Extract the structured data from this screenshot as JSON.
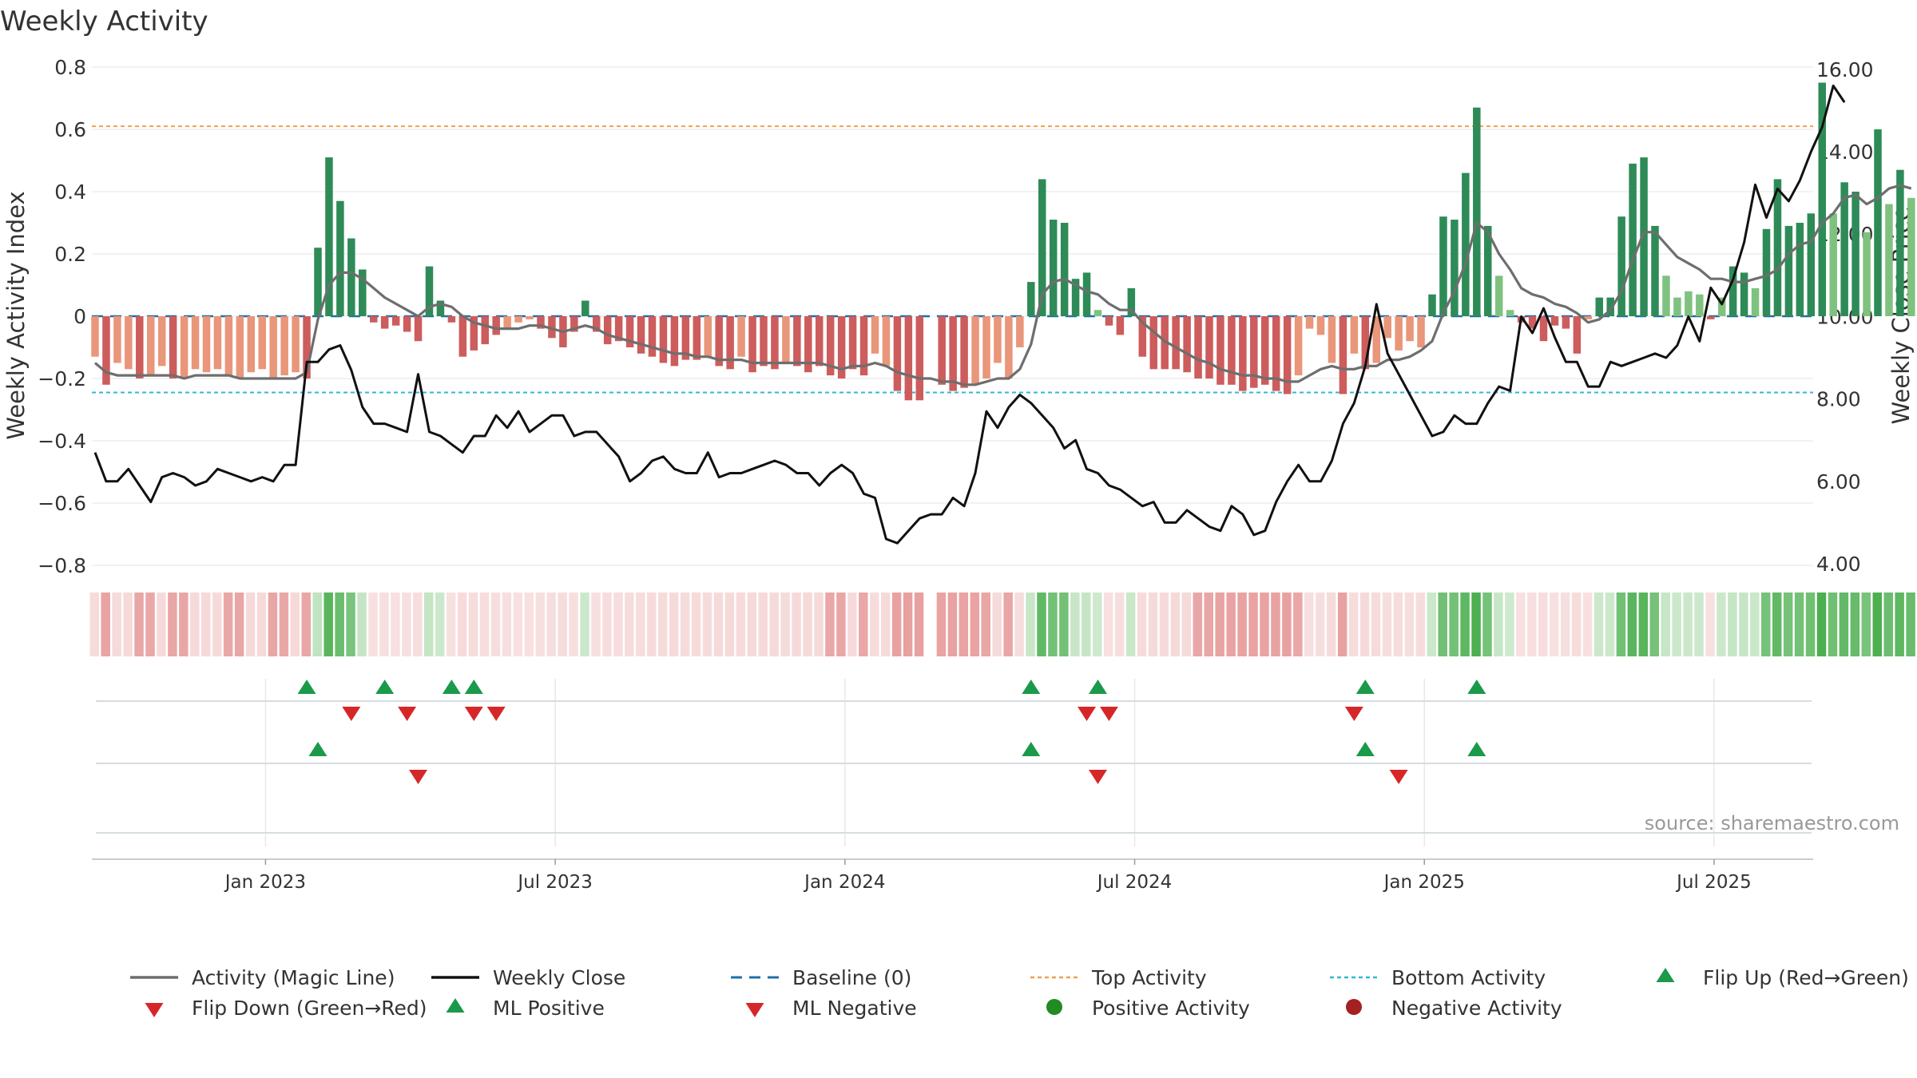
{
  "chart_data": {
    "type": "bar",
    "title": "Weekly Activity",
    "source": "source: sharemaestro.com",
    "ylabel": "Weekly Activity Index",
    "y2label": "Weekly Close Price",
    "ylim": [
      -0.8,
      0.8
    ],
    "y2lim": [
      4.0,
      16.0
    ],
    "yticks": [
      "0.8",
      "0.6",
      "0.4",
      "0.2",
      "0",
      "−0.2",
      "−0.4",
      "−0.6",
      "−0.8"
    ],
    "y2ticks": [
      "16.00",
      "14.00",
      "12.00",
      "10.00",
      "8.00",
      "6.00",
      "4.00"
    ],
    "xtick_labels": [
      "Jan 2023",
      "Jul 2023",
      "Jan 2024",
      "Jul 2024",
      "Jan 2025",
      "Jul 2025"
    ],
    "xtick_weeks": [
      15.3,
      41.3,
      67.3,
      93.3,
      119.3,
      145.3
    ],
    "top_activity": 0.61,
    "bottom_activity": -0.245,
    "baseline": 0,
    "activity": [
      -0.13,
      -0.22,
      -0.15,
      -0.17,
      -0.2,
      -0.19,
      -0.16,
      -0.2,
      -0.2,
      -0.17,
      -0.18,
      -0.17,
      -0.19,
      -0.2,
      -0.18,
      -0.17,
      -0.2,
      -0.19,
      -0.18,
      -0.2,
      0.22,
      0.51,
      0.37,
      0.25,
      0.15,
      -0.02,
      -0.04,
      -0.03,
      -0.05,
      -0.08,
      0.16,
      0.05,
      -0.02,
      -0.13,
      -0.11,
      -0.09,
      -0.06,
      -0.04,
      -0.02,
      -0.01,
      -0.04,
      -0.07,
      -0.1,
      -0.05,
      0.05,
      -0.05,
      -0.09,
      -0.08,
      -0.1,
      -0.12,
      -0.13,
      -0.15,
      -0.16,
      -0.14,
      -0.14,
      -0.13,
      -0.16,
      -0.17,
      -0.13,
      -0.18,
      -0.16,
      -0.17,
      -0.15,
      -0.16,
      -0.18,
      -0.16,
      -0.19,
      -0.2,
      -0.17,
      -0.19,
      -0.12,
      -0.16,
      -0.24,
      -0.27,
      -0.27,
      0.0,
      -0.22,
      -0.24,
      -0.23,
      -0.22,
      -0.2,
      -0.15,
      -0.2,
      -0.1,
      0.11,
      0.44,
      0.31,
      0.3,
      0.12,
      0.14,
      0.02,
      -0.03,
      -0.06,
      0.09,
      -0.13,
      -0.17,
      -0.17,
      -0.17,
      -0.18,
      -0.2,
      -0.2,
      -0.22,
      -0.22,
      -0.24,
      -0.23,
      -0.22,
      -0.24,
      -0.25,
      -0.19,
      -0.04,
      -0.06,
      -0.15,
      -0.25,
      -0.12,
      -0.17,
      -0.15,
      -0.07,
      -0.11,
      -0.08,
      -0.1,
      0.07,
      0.32,
      0.31,
      0.46,
      0.67,
      0.29,
      0.13,
      0.02,
      -0.02,
      -0.04,
      -0.08,
      -0.03,
      -0.04,
      -0.12,
      -0.01,
      0.06,
      0.06,
      0.32,
      0.49,
      0.51,
      0.29,
      0.13,
      0.06,
      0.08,
      0.07,
      -0.01,
      0.06,
      0.16,
      0.14,
      0.09,
      0.28,
      0.44,
      0.29,
      0.3,
      0.33,
      0.75,
      0.33,
      0.43,
      0.4,
      0.27,
      0.6,
      0.36,
      0.47,
      0.38
    ],
    "magic_line": [
      -0.15,
      -0.18,
      -0.19,
      -0.19,
      -0.19,
      -0.19,
      -0.19,
      -0.19,
      -0.2,
      -0.19,
      -0.19,
      -0.19,
      -0.19,
      -0.2,
      -0.2,
      -0.2,
      -0.2,
      -0.2,
      -0.2,
      -0.18,
      -0.01,
      0.1,
      0.14,
      0.14,
      0.12,
      0.09,
      0.06,
      0.04,
      0.02,
      0.0,
      0.03,
      0.04,
      0.03,
      0.0,
      -0.02,
      -0.03,
      -0.04,
      -0.04,
      -0.04,
      -0.03,
      -0.03,
      -0.04,
      -0.05,
      -0.04,
      -0.03,
      -0.04,
      -0.06,
      -0.07,
      -0.08,
      -0.09,
      -0.1,
      -0.11,
      -0.12,
      -0.12,
      -0.13,
      -0.13,
      -0.14,
      -0.14,
      -0.14,
      -0.15,
      -0.15,
      -0.15,
      -0.15,
      -0.15,
      -0.15,
      -0.15,
      -0.16,
      -0.17,
      -0.16,
      -0.16,
      -0.15,
      -0.16,
      -0.18,
      -0.19,
      -0.2,
      -0.2,
      -0.21,
      -0.21,
      -0.22,
      -0.22,
      -0.21,
      -0.2,
      -0.2,
      -0.17,
      -0.09,
      0.07,
      0.11,
      0.12,
      0.1,
      0.08,
      0.07,
      0.04,
      0.02,
      0.02,
      -0.02,
      -0.05,
      -0.08,
      -0.1,
      -0.12,
      -0.14,
      -0.15,
      -0.17,
      -0.18,
      -0.19,
      -0.19,
      -0.2,
      -0.2,
      -0.21,
      -0.21,
      -0.19,
      -0.17,
      -0.16,
      -0.17,
      -0.17,
      -0.16,
      -0.16,
      -0.14,
      -0.14,
      -0.13,
      -0.11,
      -0.08,
      0.01,
      0.08,
      0.17,
      0.3,
      0.27,
      0.2,
      0.15,
      0.09,
      0.07,
      0.06,
      0.04,
      0.03,
      0.01,
      -0.02,
      -0.01,
      0.02,
      0.08,
      0.18,
      0.27,
      0.27,
      0.23,
      0.19,
      0.17,
      0.15,
      0.12,
      0.12,
      0.11,
      0.11,
      0.12,
      0.13,
      0.15,
      0.2,
      0.23,
      0.24,
      0.3,
      0.33,
      0.38,
      0.39,
      0.36,
      0.38,
      0.41,
      0.42,
      0.41
    ],
    "weekly_close": [
      6.7,
      6.0,
      6.0,
      6.3,
      5.9,
      5.5,
      6.1,
      6.2,
      6.1,
      5.9,
      6.0,
      6.3,
      6.2,
      6.1,
      6.0,
      6.1,
      6.0,
      6.4,
      6.4,
      8.9,
      8.9,
      9.2,
      9.3,
      8.7,
      7.8,
      7.4,
      7.4,
      7.3,
      7.2,
      8.6,
      7.2,
      7.1,
      6.9,
      6.7,
      7.1,
      7.1,
      7.6,
      7.3,
      7.7,
      7.2,
      7.4,
      7.6,
      7.6,
      7.1,
      7.2,
      7.2,
      6.9,
      6.6,
      6.0,
      6.2,
      6.5,
      6.6,
      6.3,
      6.2,
      6.2,
      6.7,
      6.1,
      6.2,
      6.2,
      6.3,
      6.4,
      6.5,
      6.4,
      6.2,
      6.2,
      5.9,
      6.2,
      6.4,
      6.2,
      5.7,
      5.6,
      4.6,
      4.5,
      4.8,
      5.1,
      5.2,
      5.2,
      5.6,
      5.4,
      6.2,
      7.7,
      7.3,
      7.8,
      8.1,
      7.9,
      7.6,
      7.3,
      6.8,
      7.0,
      6.3,
      6.2,
      5.9,
      5.8,
      5.6,
      5.4,
      5.5,
      5.0,
      5.0,
      5.3,
      5.1,
      4.9,
      4.8,
      5.4,
      5.2,
      4.7,
      4.8,
      5.5,
      6.0,
      6.4,
      6.0,
      6.0,
      6.5,
      7.4,
      7.9,
      8.8,
      10.3,
      9.1,
      8.6,
      8.1,
      7.6,
      7.1,
      7.2,
      7.6,
      7.4,
      7.4,
      7.9,
      8.3,
      8.2,
      10.0,
      9.6,
      10.2,
      9.5,
      8.9,
      8.9,
      8.3,
      8.3,
      8.9,
      8.8,
      8.9,
      9.0,
      9.1,
      9.0,
      9.3,
      10.0,
      9.4,
      10.7,
      10.3,
      10.9,
      11.8,
      13.2,
      12.4,
      13.1,
      12.8,
      13.3,
      14.0,
      14.6,
      15.6,
      15.2
    ],
    "bar_colors": {
      "pos_strong": "#2e8b57",
      "pos_light": "#7fc27f",
      "neg_strong": "#cd5c5c",
      "neg_light": "#e9967a"
    },
    "heat_colors": {
      "pos_strong": "#4caf50",
      "pos_light": "#a8d8a8",
      "neg_strong": "#e08080",
      "neg_light": "#f2c8c8"
    },
    "line_colors": {
      "magic": "#6e6e6e",
      "close": "#111111",
      "baseline": "#1f6fa8",
      "top": "#f0a050",
      "bottom": "#30b8d8",
      "up": "#1a9a4a",
      "down": "#d62728",
      "pos": "#228b22",
      "neg": "#a52020"
    },
    "flip_up_row1": [
      19,
      26,
      32,
      34,
      84,
      90,
      114,
      124
    ],
    "flip_down_row1": [
      23,
      28,
      34,
      36,
      89,
      91,
      113
    ],
    "ml_up_row2": [
      20,
      84,
      114,
      124
    ],
    "ml_down_row2": [
      29,
      90,
      117
    ],
    "legend": [
      {
        "label": "Activity (Magic Line)",
        "kind": "solid",
        "color": "#6e6e6e"
      },
      {
        "label": "Weekly Close",
        "kind": "solid",
        "color": "#111111"
      },
      {
        "label": "Baseline (0)",
        "kind": "dashed",
        "color": "#1f6fa8"
      },
      {
        "label": "Top Activity",
        "kind": "dotted",
        "color": "#f0a050"
      },
      {
        "label": "Bottom Activity",
        "kind": "dotted",
        "color": "#30b8d8"
      },
      {
        "label": "Flip Up (Red→Green)",
        "kind": "tri-up",
        "color": "#1a9a4a"
      },
      {
        "label": "Flip Down (Green→Red)",
        "kind": "tri-down",
        "color": "#d62728"
      },
      {
        "label": "ML Positive",
        "kind": "tri-up",
        "color": "#1a9a4a"
      },
      {
        "label": "ML Negative",
        "kind": "tri-down",
        "color": "#d62728"
      },
      {
        "label": "Positive Activity",
        "kind": "dot",
        "color": "#228b22"
      },
      {
        "label": "Negative Activity",
        "kind": "dot",
        "color": "#a52020"
      }
    ]
  }
}
